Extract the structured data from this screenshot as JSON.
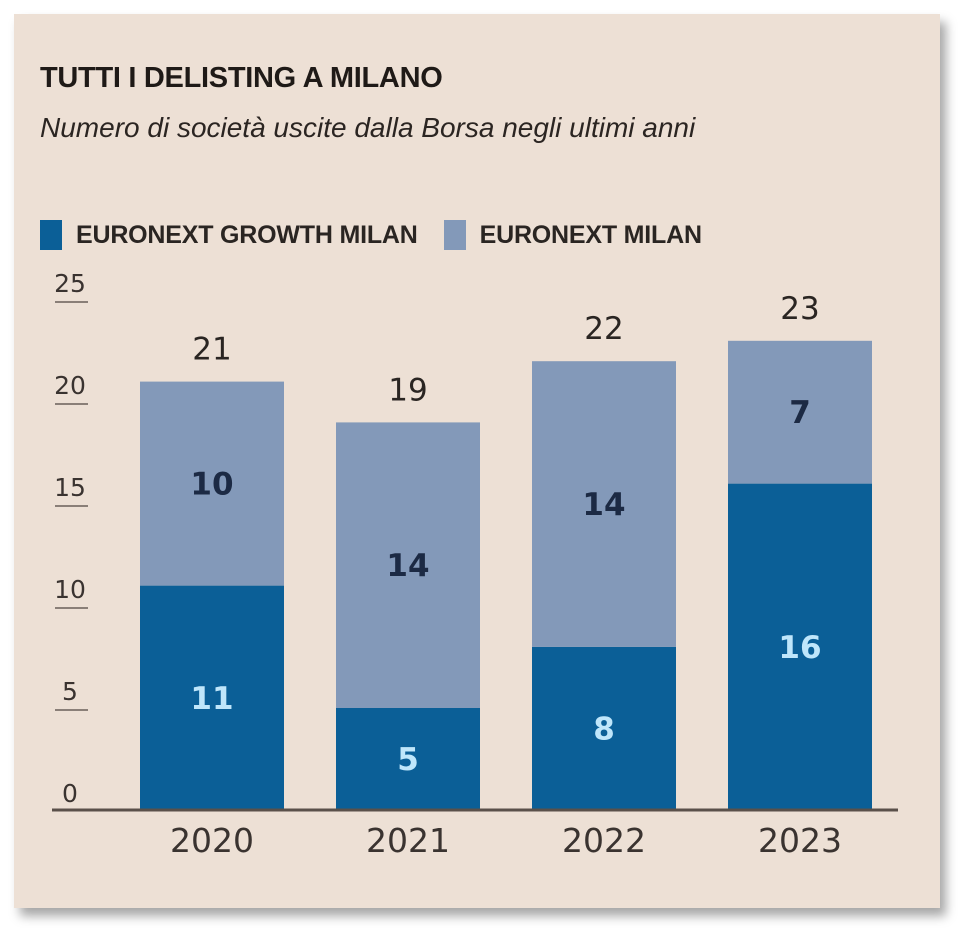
{
  "header": {
    "title": "TUTTI I DELISTING A MILANO",
    "subtitle": "Numero di società uscite dalla Borsa negli ultimi anni"
  },
  "legend": [
    {
      "label": "EURONEXT GROWTH MILAN",
      "color": "#0b5f97"
    },
    {
      "label": "EURONEXT MILAN",
      "color": "#8399b9"
    }
  ],
  "chart_data": {
    "type": "bar",
    "stacked": true,
    "title": "TUTTI I DELISTING A MILANO",
    "subtitle": "Numero di società uscite dalla Borsa negli ultimi anni",
    "xlabel": "",
    "ylabel": "",
    "categories": [
      "2020",
      "2021",
      "2022",
      "2023"
    ],
    "series": [
      {
        "name": "EURONEXT GROWTH MILAN",
        "values": [
          11,
          5,
          8,
          16
        ],
        "color": "#0b5f97",
        "label_color": "#bfe6fb"
      },
      {
        "name": "EURONEXT MILAN",
        "values": [
          10,
          14,
          14,
          7
        ],
        "color": "#8399b9",
        "label_color": "#1c2a44"
      }
    ],
    "totals": [
      21,
      19,
      22,
      23
    ],
    "ylim": [
      0,
      25
    ],
    "yticks": [
      0,
      5,
      10,
      15,
      20,
      25
    ],
    "grid": false,
    "legend_position": "top-left"
  }
}
